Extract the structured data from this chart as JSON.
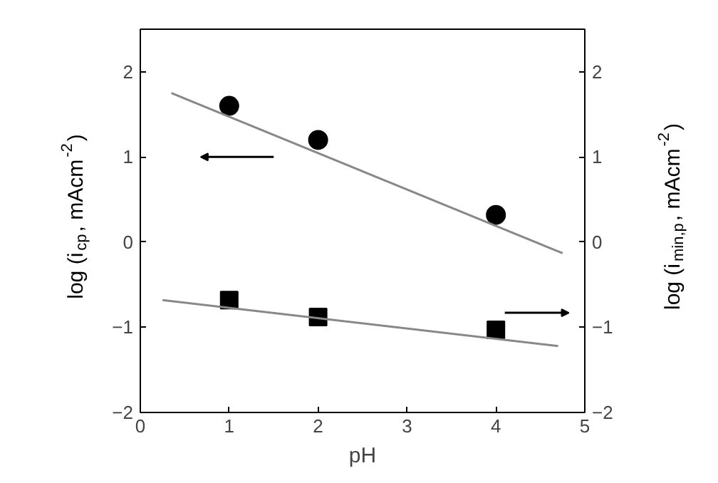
{
  "chart_data": {
    "type": "scatter",
    "xlabel": "pH",
    "ylabel": "log (i$_{cp}$, mAcm$^{-2}$)",
    "y2label": "log (i$_{min,p}$, mAcm$^{-2}$)",
    "x": [
      1,
      2,
      4
    ],
    "series": [
      {
        "marker": "circle",
        "color": "#000000",
        "values": [
          1.6,
          1.2,
          0.32
        ]
      },
      {
        "marker": "square",
        "color": "#000000",
        "values": [
          -0.68,
          -0.88,
          -1.03
        ],
        "axis": "y2"
      },
      {
        "type": "line",
        "marker": "none",
        "color": "#888888",
        "x": [
          0.35,
          4.75
        ],
        "values": [
          1.75,
          -0.13
        ]
      },
      {
        "type": "line",
        "marker": "none",
        "color": "#888888",
        "x": [
          0.25,
          4.7
        ],
        "values": [
          -0.68,
          -1.22
        ],
        "axis": "y2"
      }
    ],
    "xlim": [
      0,
      5
    ],
    "xticks": [
      0,
      1,
      2,
      3,
      4,
      5
    ],
    "ylim": [
      -2,
      2.5
    ],
    "yticks": [
      -2,
      -1,
      0,
      1,
      2
    ],
    "y2lim": [
      -2,
      2.5
    ],
    "y2ticks": [
      -2,
      -1,
      0,
      1,
      2
    ],
    "grid": false
  }
}
